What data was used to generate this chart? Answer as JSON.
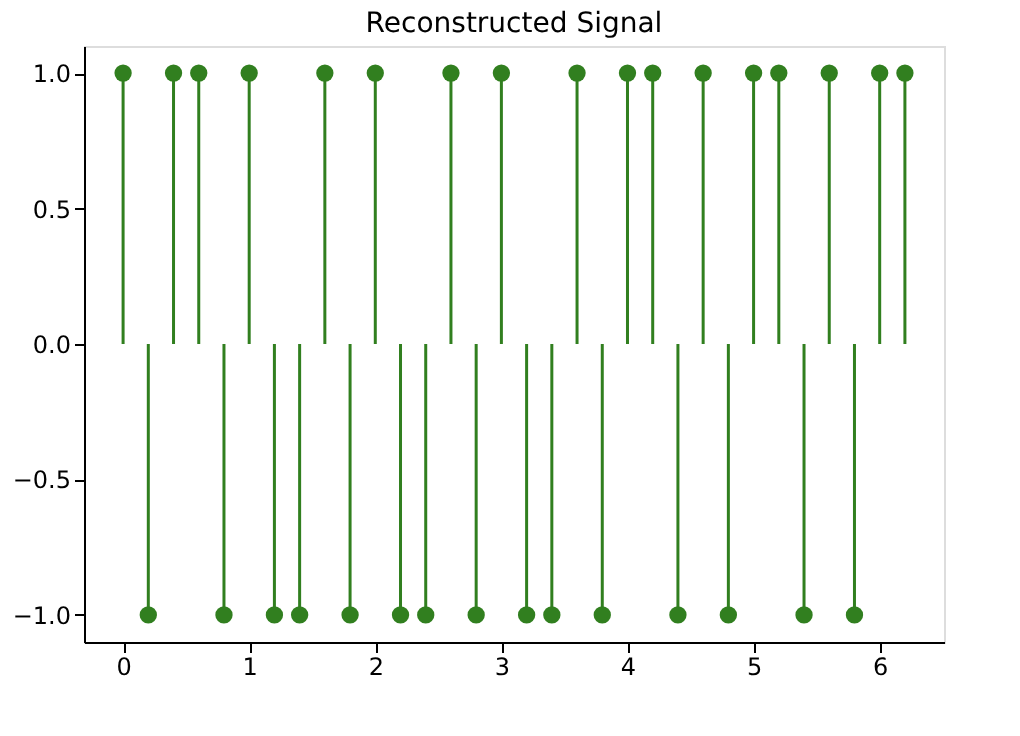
{
  "chart_data": {
    "type": "lollipop",
    "title": "Reconstructed Signal",
    "x": [
      0,
      0.2,
      0.4,
      0.6,
      0.8,
      1.0,
      1.2,
      1.4,
      1.6,
      1.8,
      2.0,
      2.2,
      2.4,
      2.6,
      2.8,
      3.0,
      3.2,
      3.4,
      3.6,
      3.8,
      4.0,
      4.2,
      4.4,
      4.6,
      4.8,
      5.0,
      5.2,
      5.4,
      5.6,
      5.8,
      6.0,
      6.2
    ],
    "series": [
      {
        "color": "#317f1f",
        "values": [
          1,
          -1,
          1,
          1,
          -1,
          1,
          -1,
          -1,
          1,
          -1,
          1,
          -1,
          -1,
          1,
          -1,
          1,
          -1,
          -1,
          1,
          -1,
          1,
          1,
          -1,
          1,
          -1,
          1,
          1,
          -1,
          1,
          -1,
          1,
          1
        ]
      }
    ],
    "xlim": [
      -0.31,
      6.51
    ],
    "ylim": [
      -1.1,
      1.1
    ],
    "xticks": [
      0,
      1,
      2,
      3,
      4,
      5,
      6
    ],
    "yticks": [
      {
        "value": -1,
        "label": "−1.0"
      },
      {
        "value": -0.5,
        "label": "−0.5"
      },
      {
        "value": 0,
        "label": "0.0"
      },
      {
        "value": 0.5,
        "label": "0.5"
      },
      {
        "value": 1,
        "label": "1.0"
      }
    ],
    "marker": "circle",
    "grid": false
  }
}
